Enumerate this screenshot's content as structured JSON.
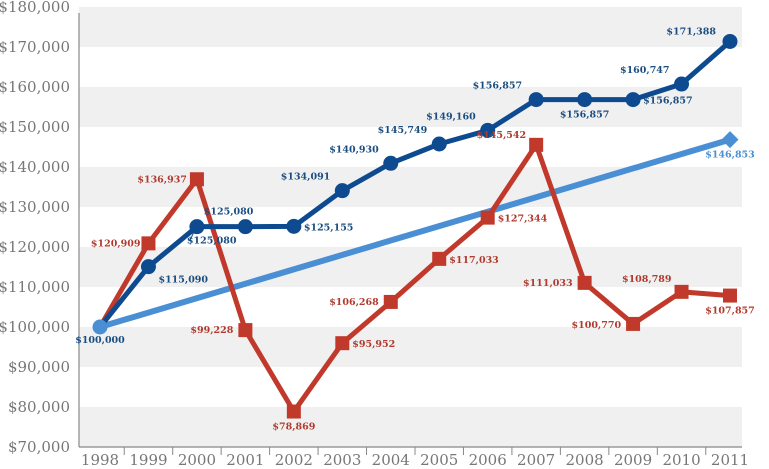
{
  "chart_data": {
    "type": "line",
    "title": "",
    "xlabel": "",
    "ylabel": "",
    "ylim": [
      70000,
      180000
    ],
    "y_ticks": [
      "$70,000",
      "$80,000",
      "$90,000",
      "$100,000",
      "$110,000",
      "$120,000",
      "$130,000",
      "$140,000",
      "$150,000",
      "$160,000",
      "$170,000",
      "$180,000"
    ],
    "y_tick_values": [
      70000,
      80000,
      90000,
      100000,
      110000,
      120000,
      130000,
      140000,
      150000,
      160000,
      170000,
      180000
    ],
    "x": [
      "1998",
      "1999",
      "2000",
      "2001",
      "2002",
      "2003",
      "2004",
      "2005",
      "2006",
      "2007",
      "2008",
      "2009",
      "2010",
      "2011"
    ],
    "grid": "alternating horizontal bands",
    "legend": "none",
    "series": [
      {
        "name": "Red series",
        "color": "#c0392b",
        "marker": "square",
        "values": [
          100000,
          120909,
          136937,
          99228,
          78869,
          95952,
          106268,
          117033,
          127344,
          145542,
          111033,
          100770,
          108789,
          107857
        ],
        "labels": [
          "",
          "$120,909",
          "$136,937",
          "$99,228",
          "$78,869",
          "$95,952",
          "$106,268",
          "$117,033",
          "$127,344",
          "$145,542",
          "$111,033",
          "$100,770",
          "$108,789",
          "$107,857"
        ]
      },
      {
        "name": "Dark blue series",
        "color": "#0d4a8f",
        "marker": "circle",
        "values": [
          100000,
          115090,
          125080,
          125080,
          125155,
          134091,
          140930,
          145749,
          149160,
          156857,
          156857,
          156857,
          160747,
          171388
        ],
        "labels": [
          "$100,000",
          "$115,090",
          "$125,080",
          "$125,080",
          "$125,155",
          "$134,091",
          "$140,930",
          "$145,749",
          "$149,160",
          "$156,857",
          "$156,857",
          "$156,857",
          "$160,747",
          "$171,388"
        ]
      },
      {
        "name": "Light blue series",
        "color": "#4a8fd4",
        "marker": "diamond",
        "points": [
          {
            "x": "1998",
            "y": 100000
          },
          {
            "x": "2011",
            "y": 146853
          }
        ],
        "labels": [
          "",
          "$146,853"
        ]
      }
    ]
  }
}
